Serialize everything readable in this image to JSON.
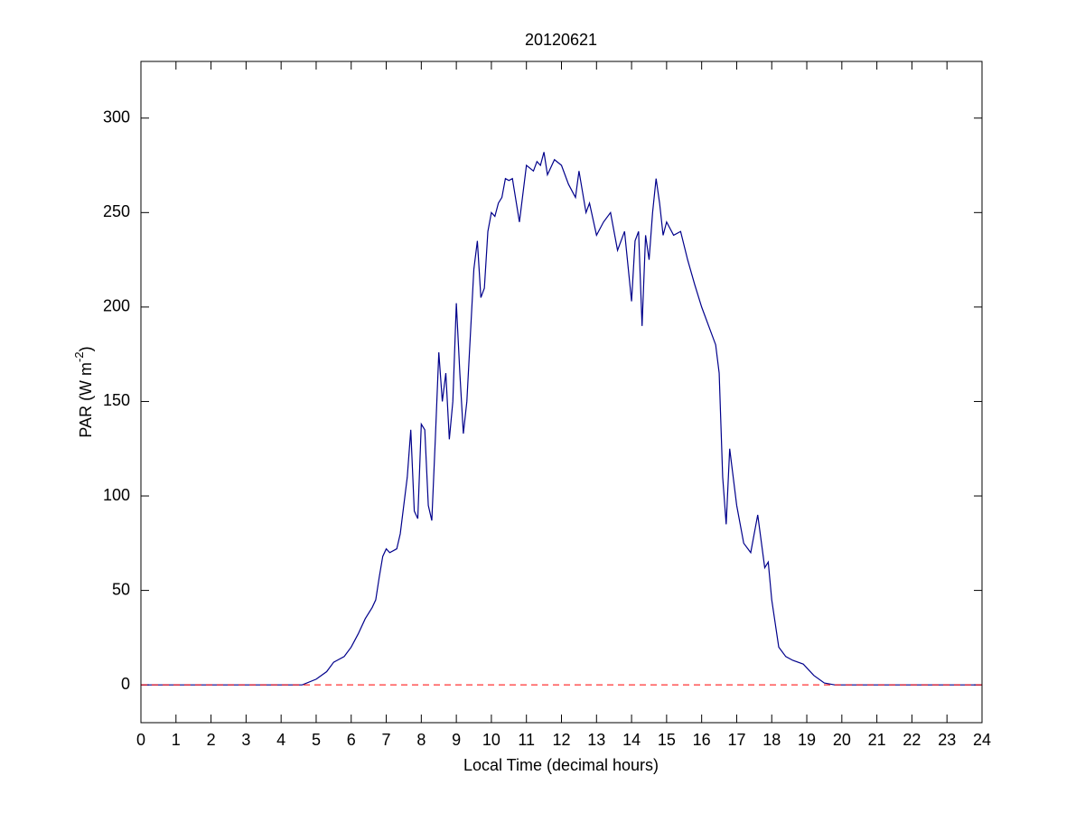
{
  "chart_data": {
    "type": "line",
    "title": "20120621",
    "xlabel": "Local Time (decimal hours)",
    "ylabel": [
      "PAR (W m",
      "-2",
      ")"
    ],
    "xlim": [
      0,
      24
    ],
    "ylim": [
      -20,
      330
    ],
    "xticks": [
      0,
      1,
      2,
      3,
      4,
      5,
      6,
      7,
      8,
      9,
      10,
      11,
      12,
      13,
      14,
      15,
      16,
      17,
      18,
      19,
      20,
      21,
      22,
      23,
      24
    ],
    "yticks": [
      0,
      50,
      100,
      150,
      200,
      250,
      300
    ],
    "hline": 0,
    "hline_color": "#ff0000",
    "series": [
      {
        "color": "#00008b",
        "x": [
          0,
          4.6,
          5.0,
          5.3,
          5.5,
          5.6,
          5.8,
          6.0,
          6.2,
          6.4,
          6.6,
          6.7,
          6.8,
          6.9,
          7.0,
          7.1,
          7.3,
          7.4,
          7.6,
          7.7,
          7.8,
          7.9,
          8.0,
          8.1,
          8.2,
          8.3,
          8.4,
          8.5,
          8.6,
          8.7,
          8.8,
          8.9,
          9.0,
          9.1,
          9.2,
          9.3,
          9.4,
          9.5,
          9.6,
          9.7,
          9.8,
          9.9,
          10.0,
          10.1,
          10.2,
          10.3,
          10.4,
          10.5,
          10.6,
          10.8,
          11.0,
          11.2,
          11.3,
          11.4,
          11.5,
          11.6,
          11.8,
          12.0,
          12.2,
          12.4,
          12.5,
          12.7,
          12.8,
          13.0,
          13.2,
          13.4,
          13.6,
          13.8,
          14.0,
          14.1,
          14.2,
          14.3,
          14.4,
          14.5,
          14.6,
          14.7,
          14.8,
          14.9,
          15.0,
          15.2,
          15.4,
          15.6,
          15.8,
          16.0,
          16.2,
          16.4,
          16.5,
          16.6,
          16.7,
          16.8,
          17.0,
          17.2,
          17.4,
          17.6,
          17.8,
          17.9,
          18.0,
          18.2,
          18.4,
          18.6,
          18.9,
          19.2,
          19.5,
          19.8,
          24
        ],
        "values": [
          0,
          0,
          3,
          7,
          12,
          13,
          15,
          20,
          27,
          35,
          41,
          45,
          57,
          68,
          72,
          70,
          72,
          80,
          110,
          135,
          92,
          88,
          138,
          135,
          95,
          87,
          130,
          176,
          150,
          165,
          130,
          150,
          202,
          165,
          133,
          150,
          185,
          220,
          235,
          205,
          210,
          240,
          250,
          248,
          255,
          258,
          268,
          267,
          268,
          245,
          275,
          272,
          277,
          275,
          282,
          270,
          278,
          275,
          265,
          258,
          272,
          250,
          255,
          238,
          245,
          250,
          230,
          240,
          203,
          235,
          240,
          190,
          238,
          225,
          250,
          268,
          255,
          238,
          245,
          238,
          240,
          225,
          212,
          200,
          190,
          180,
          165,
          110,
          85,
          125,
          95,
          75,
          70,
          90,
          62,
          65,
          45,
          20,
          15,
          13,
          11,
          5,
          1,
          0,
          0
        ]
      }
    ]
  }
}
